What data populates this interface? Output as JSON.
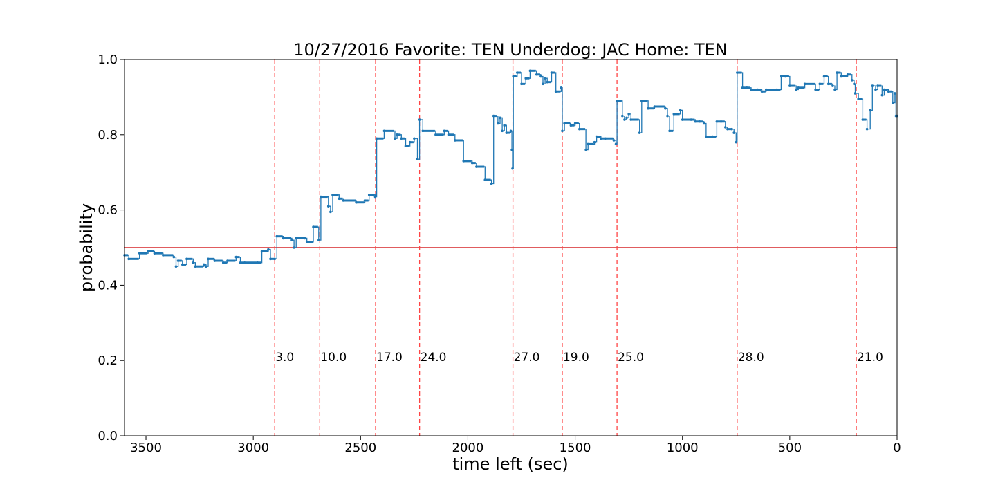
{
  "chart_data": {
    "type": "line",
    "title": "10/27/2016 Favorite: TEN Underdog: JAC Home: TEN",
    "xlabel": "time left (sec)",
    "ylabel": "probability",
    "xlim": [
      3600,
      0
    ],
    "ylim": [
      0.0,
      1.0
    ],
    "x_ticks": [
      3500,
      3000,
      2500,
      2000,
      1500,
      1000,
      500,
      0
    ],
    "y_ticks": [
      0.0,
      0.2,
      0.4,
      0.6,
      0.8,
      1.0
    ],
    "grid": false,
    "colors": {
      "series": "#1f77b4",
      "baseline": "#d62728",
      "events": "#ff4444"
    },
    "baseline": 0.5,
    "events": [
      {
        "x": 2900,
        "label": "3.0"
      },
      {
        "x": 2690,
        "label": "10.0"
      },
      {
        "x": 2430,
        "label": "17.0"
      },
      {
        "x": 2225,
        "label": "24.0"
      },
      {
        "x": 1790,
        "label": "27.0"
      },
      {
        "x": 1560,
        "label": "19.0"
      },
      {
        "x": 1305,
        "label": "25.0"
      },
      {
        "x": 745,
        "label": "28.0"
      },
      {
        "x": 190,
        "label": "21.0"
      }
    ],
    "series": [
      {
        "points": [
          [
            3600,
            0.48
          ],
          [
            3580,
            0.47
          ],
          [
            3530,
            0.485
          ],
          [
            3490,
            0.49
          ],
          [
            3460,
            0.485
          ],
          [
            3420,
            0.48
          ],
          [
            3370,
            0.475
          ],
          [
            3360,
            0.45
          ],
          [
            3350,
            0.465
          ],
          [
            3330,
            0.455
          ],
          [
            3310,
            0.47
          ],
          [
            3280,
            0.46
          ],
          [
            3270,
            0.45
          ],
          [
            3230,
            0.455
          ],
          [
            3220,
            0.45
          ],
          [
            3210,
            0.47
          ],
          [
            3180,
            0.465
          ],
          [
            3140,
            0.46
          ],
          [
            3120,
            0.465
          ],
          [
            3080,
            0.475
          ],
          [
            3060,
            0.46
          ],
          [
            3040,
            0.46
          ],
          [
            2980,
            0.46
          ],
          [
            2960,
            0.49
          ],
          [
            2930,
            0.495
          ],
          [
            2920,
            0.47
          ],
          [
            2900,
            0.47
          ],
          [
            2890,
            0.53
          ],
          [
            2860,
            0.525
          ],
          [
            2820,
            0.52
          ],
          [
            2810,
            0.5
          ],
          [
            2800,
            0.525
          ],
          [
            2760,
            0.525
          ],
          [
            2750,
            0.515
          ],
          [
            2720,
            0.555
          ],
          [
            2695,
            0.52
          ],
          [
            2685,
            0.635
          ],
          [
            2650,
            0.61
          ],
          [
            2640,
            0.595
          ],
          [
            2630,
            0.64
          ],
          [
            2600,
            0.63
          ],
          [
            2580,
            0.625
          ],
          [
            2520,
            0.62
          ],
          [
            2480,
            0.625
          ],
          [
            2460,
            0.64
          ],
          [
            2440,
            0.64
          ],
          [
            2432,
            0.635
          ],
          [
            2425,
            0.79
          ],
          [
            2390,
            0.81
          ],
          [
            2340,
            0.79
          ],
          [
            2330,
            0.8
          ],
          [
            2310,
            0.79
          ],
          [
            2290,
            0.77
          ],
          [
            2270,
            0.78
          ],
          [
            2250,
            0.79
          ],
          [
            2235,
            0.735
          ],
          [
            2225,
            0.84
          ],
          [
            2210,
            0.81
          ],
          [
            2150,
            0.8
          ],
          [
            2110,
            0.81
          ],
          [
            2090,
            0.8
          ],
          [
            2060,
            0.785
          ],
          [
            2020,
            0.73
          ],
          [
            1980,
            0.725
          ],
          [
            1960,
            0.715
          ],
          [
            1920,
            0.68
          ],
          [
            1890,
            0.67
          ],
          [
            1880,
            0.85
          ],
          [
            1860,
            0.83
          ],
          [
            1850,
            0.845
          ],
          [
            1840,
            0.81
          ],
          [
            1830,
            0.825
          ],
          [
            1820,
            0.805
          ],
          [
            1800,
            0.81
          ],
          [
            1795,
            0.76
          ],
          [
            1792,
            0.71
          ],
          [
            1788,
            0.955
          ],
          [
            1770,
            0.965
          ],
          [
            1750,
            0.935
          ],
          [
            1730,
            0.95
          ],
          [
            1710,
            0.97
          ],
          [
            1680,
            0.96
          ],
          [
            1660,
            0.955
          ],
          [
            1650,
            0.935
          ],
          [
            1640,
            0.95
          ],
          [
            1630,
            0.94
          ],
          [
            1610,
            0.965
          ],
          [
            1590,
            0.915
          ],
          [
            1565,
            0.925
          ],
          [
            1560,
            0.81
          ],
          [
            1550,
            0.83
          ],
          [
            1520,
            0.825
          ],
          [
            1500,
            0.83
          ],
          [
            1480,
            0.815
          ],
          [
            1450,
            0.76
          ],
          [
            1440,
            0.775
          ],
          [
            1410,
            0.78
          ],
          [
            1400,
            0.795
          ],
          [
            1380,
            0.79
          ],
          [
            1360,
            0.79
          ],
          [
            1320,
            0.785
          ],
          [
            1310,
            0.775
          ],
          [
            1305,
            0.89
          ],
          [
            1280,
            0.85
          ],
          [
            1270,
            0.84
          ],
          [
            1260,
            0.845
          ],
          [
            1250,
            0.855
          ],
          [
            1240,
            0.84
          ],
          [
            1200,
            0.805
          ],
          [
            1190,
            0.89
          ],
          [
            1160,
            0.87
          ],
          [
            1130,
            0.875
          ],
          [
            1080,
            0.87
          ],
          [
            1070,
            0.85
          ],
          [
            1060,
            0.81
          ],
          [
            1040,
            0.855
          ],
          [
            1010,
            0.865
          ],
          [
            1000,
            0.84
          ],
          [
            960,
            0.84
          ],
          [
            940,
            0.835
          ],
          [
            920,
            0.835
          ],
          [
            900,
            0.83
          ],
          [
            890,
            0.795
          ],
          [
            860,
            0.795
          ],
          [
            840,
            0.835
          ],
          [
            820,
            0.835
          ],
          [
            800,
            0.82
          ],
          [
            790,
            0.815
          ],
          [
            770,
            0.815
          ],
          [
            760,
            0.805
          ],
          [
            750,
            0.78
          ],
          [
            745,
            0.965
          ],
          [
            720,
            0.925
          ],
          [
            700,
            0.925
          ],
          [
            680,
            0.92
          ],
          [
            650,
            0.92
          ],
          [
            630,
            0.915
          ],
          [
            610,
            0.92
          ],
          [
            560,
            0.92
          ],
          [
            540,
            0.955
          ],
          [
            520,
            0.955
          ],
          [
            500,
            0.93
          ],
          [
            470,
            0.92
          ],
          [
            460,
            0.925
          ],
          [
            430,
            0.935
          ],
          [
            380,
            0.92
          ],
          [
            360,
            0.935
          ],
          [
            340,
            0.955
          ],
          [
            320,
            0.935
          ],
          [
            300,
            0.93
          ],
          [
            290,
            0.92
          ],
          [
            280,
            0.965
          ],
          [
            260,
            0.955
          ],
          [
            230,
            0.96
          ],
          [
            210,
            0.945
          ],
          [
            200,
            0.935
          ],
          [
            195,
            0.91
          ],
          [
            180,
            0.895
          ],
          [
            160,
            0.84
          ],
          [
            140,
            0.815
          ],
          [
            125,
            0.865
          ],
          [
            115,
            0.93
          ],
          [
            100,
            0.92
          ],
          [
            90,
            0.93
          ],
          [
            70,
            0.905
          ],
          [
            60,
            0.92
          ],
          [
            40,
            0.915
          ],
          [
            20,
            0.885
          ],
          [
            10,
            0.91
          ],
          [
            5,
            0.85
          ],
          [
            0,
            0.85
          ]
        ]
      }
    ]
  }
}
